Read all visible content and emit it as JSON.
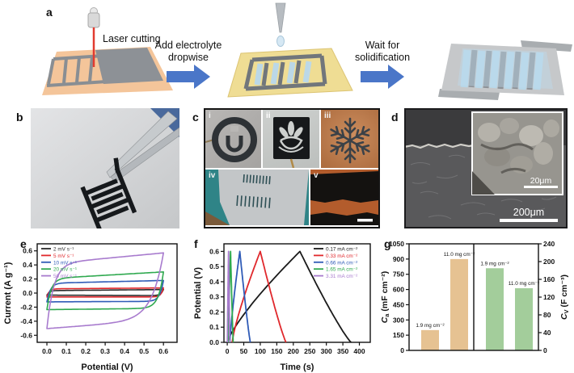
{
  "panel_a": {
    "label": "a",
    "step1_label": "Laser cutting",
    "arrow1_line1": "Add electrolyte",
    "arrow1_line2": "dropwise",
    "arrow2_line1": "Wait for",
    "arrow2_line2": "solidification",
    "arrow_color": "#4a76c8",
    "substrate1_color": "#f4c59a",
    "substrate2_color": "#efdd94",
    "film_color": "#8d9196",
    "electrolyte_color": "#b9d8ec",
    "laser_beam_color": "#e23b30"
  },
  "panel_b": {
    "label": "b"
  },
  "panel_c": {
    "label": "c",
    "sub_labels": [
      "i",
      "ii",
      "iii",
      "iv",
      "v"
    ]
  },
  "panel_d": {
    "label": "d",
    "inset_scale_text": "20μm",
    "main_scale_text": "200μm"
  },
  "chart_data": [
    {
      "panel": "e",
      "type": "line",
      "subtype": "cyclic-voltammetry-loops",
      "xlabel": "Potential (V)",
      "ylabel": "Current (A g⁻¹)",
      "xlim": [
        -0.05,
        0.67
      ],
      "ylim": [
        -0.7,
        0.7
      ],
      "xticks": [
        "0.0",
        "0.1",
        "0.2",
        "0.3",
        "0.4",
        "0.5",
        "0.6"
      ],
      "yticks": [
        "-0.6",
        "-0.4",
        "-0.2",
        "0.0",
        "0.2",
        "0.4",
        "0.6"
      ],
      "grid": false,
      "legend_position": "top-left",
      "potential_window_V": [
        0,
        0.6
      ],
      "series": [
        {
          "name": "2 mV s⁻¹",
          "color": "#2b2b2b",
          "a0": 0.035,
          "a1": 0.025,
          "c0": -0.03,
          "c1": -0.008,
          "kA": 0.012,
          "kC": 0.012
        },
        {
          "name": "5 mV s⁻¹",
          "color": "#e0282c",
          "a0": 0.06,
          "a1": 0.022,
          "c0": -0.055,
          "c1": 0.0,
          "kA": 0.012,
          "kC": 0.012
        },
        {
          "name": "10 mV s⁻¹",
          "color": "#2f5bb7",
          "a0": 0.14,
          "a1": 0.065,
          "c0": -0.125,
          "c1": 0.012,
          "kA": 0.018,
          "kC": 0.018
        },
        {
          "name": "20 mV s⁻¹",
          "color": "#2fa94f",
          "a0": 0.205,
          "a1": 0.16,
          "c0": -0.235,
          "c1": 0.03,
          "kA": 0.022,
          "kC": 0.025
        },
        {
          "name": "50 mV s⁻¹",
          "color": "#a87bce",
          "a0": 0.415,
          "a1": 0.26,
          "c0": -0.505,
          "c1": 0.21,
          "kA": 0.035,
          "kC": 0.06
        }
      ]
    },
    {
      "panel": "f",
      "type": "line",
      "subtype": "galvanostatic-charge-discharge",
      "xlabel": "Time (s)",
      "ylabel": "Potential (V)",
      "xlim": [
        -10,
        433
      ],
      "ylim": [
        0,
        0.65
      ],
      "xticks": [
        "0",
        "50",
        "100",
        "150",
        "200",
        "250",
        "300",
        "350",
        "400"
      ],
      "yticks": [
        "0.0",
        "0.1",
        "0.2",
        "0.3",
        "0.4",
        "0.5",
        "0.6"
      ],
      "grid": false,
      "legend_position": "top-right",
      "series": [
        {
          "name": "0.17 mA cm⁻²",
          "color": "#1a1a1a",
          "t_start": 0,
          "t_peak": 220,
          "t_end": 375,
          "v_max": 0.6
        },
        {
          "name": "0.33 mA cm⁻²",
          "color": "#e0282c",
          "t_start": 15,
          "t_peak": 100,
          "t_end": 178,
          "v_max": 0.6
        },
        {
          "name": "0.66 mA cm⁻²",
          "color": "#2f5bb7",
          "t_start": 8,
          "t_peak": 38,
          "t_end": 70,
          "v_max": 0.6
        },
        {
          "name": "1.65 mA cm⁻²",
          "color": "#2fa94f",
          "t_start": 3,
          "t_peak": 10,
          "t_end": 18,
          "v_max": 0.6
        },
        {
          "name": "3.31 mA cm⁻²",
          "color": "#a87bce",
          "t_start": 0.5,
          "t_peak": 4,
          "t_end": 8,
          "v_max": 0.6
        }
      ]
    },
    {
      "panel": "g",
      "type": "bar",
      "left_axis": {
        "ylabel_sym": "C",
        "ylabel_sub": "a",
        "ylabel_unit": " (mF cm⁻²)",
        "ylim": [
          0,
          1050
        ],
        "yticks": [
          "0",
          "150",
          "300",
          "450",
          "600",
          "750",
          "900",
          "1050"
        ],
        "bar_color": "#e6c292",
        "bars": [
          {
            "label": "1.9 mg cm⁻²",
            "value": 200
          },
          {
            "label": "11.0 mg cm⁻²",
            "value": 900
          }
        ]
      },
      "right_axis": {
        "ylabel_sym": "C",
        "ylabel_sub": "V",
        "ylabel_unit": " (F cm⁻³)",
        "ylim": [
          0,
          240
        ],
        "yticks": [
          "0",
          "40",
          "80",
          "120",
          "160",
          "200",
          "240"
        ],
        "bar_color": "#a3cd9b",
        "bars": [
          {
            "label": "1.9 mg cm⁻²",
            "value": 185
          },
          {
            "label": "11.0 mg cm⁻²",
            "value": 140
          }
        ]
      }
    }
  ]
}
